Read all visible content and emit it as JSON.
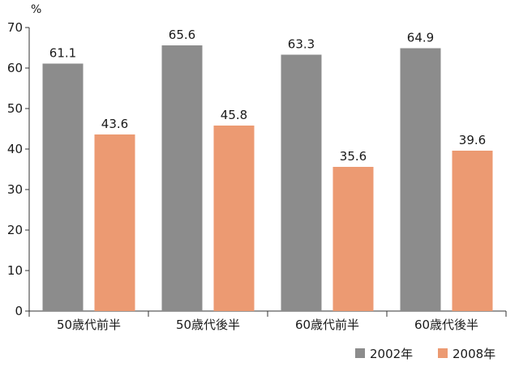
{
  "chart_data": {
    "type": "bar",
    "title": "",
    "xlabel": "",
    "ylabel": "",
    "unit": "%",
    "categories": [
      "50歳代前半",
      "50歳代後半",
      "60歳代前半",
      "60歳代後半"
    ],
    "series": [
      {
        "name": "2002年",
        "color": "#8c8c8c",
        "values": [
          61.1,
          65.6,
          63.3,
          64.9
        ]
      },
      {
        "name": "2008年",
        "color": "#ec9a72",
        "values": [
          43.6,
          45.8,
          35.6,
          39.6
        ]
      }
    ],
    "ylim": [
      0,
      70
    ],
    "yticks": [
      0,
      10,
      20,
      30,
      40,
      50,
      60,
      70
    ],
    "grid": false,
    "legend_position": "bottom-right",
    "data_labels": true
  }
}
